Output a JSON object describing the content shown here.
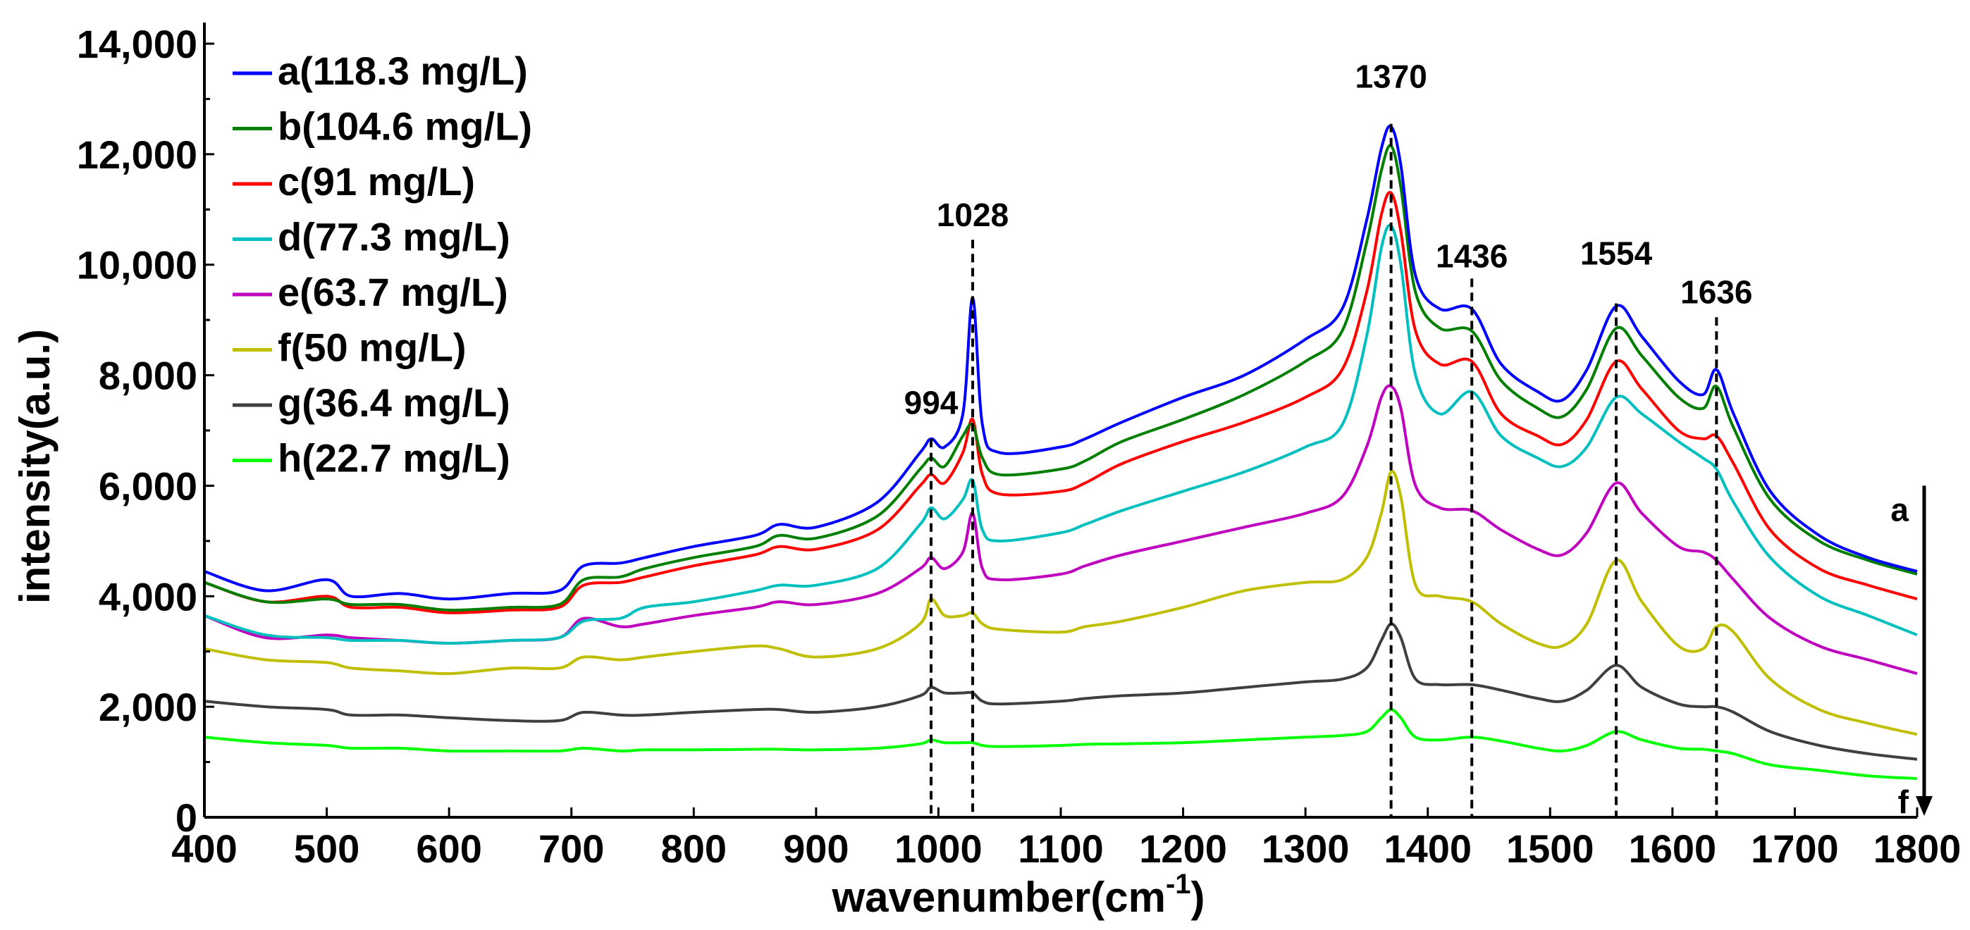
{
  "chart_data": {
    "type": "line",
    "title": "",
    "xlabel": "wavenumber(cm",
    "xlabel_sup": "-1",
    "xlabel_close": ")",
    "ylabel": "intensity(a.u.)",
    "xlim": [
      400,
      1800
    ],
    "ylim": [
      0,
      14000
    ],
    "xticks": [
      400,
      500,
      600,
      700,
      800,
      900,
      1000,
      1100,
      1200,
      1300,
      1400,
      1500,
      1600,
      1700,
      1800
    ],
    "xtick_labels": [
      "400",
      "500",
      "600",
      "700",
      "800",
      "900",
      "1000",
      "1100",
      "1200",
      "1300",
      "1400",
      "1500",
      "1600",
      "1700",
      "1800"
    ],
    "yticks": [
      0,
      2000,
      4000,
      6000,
      8000,
      10000,
      12000,
      14000
    ],
    "ytick_labels": [
      "0",
      "2,000",
      "4,000",
      "6,000",
      "8,000",
      "10,000",
      "12,000",
      "14,000"
    ],
    "grid": false,
    "legend_position": "top-left",
    "series": [
      {
        "name": "a(118.3 mg/L)",
        "color": "#0000ff",
        "x": [
          400,
          450,
          500,
          520,
          560,
          600,
          650,
          690,
          710,
          740,
          760,
          800,
          850,
          870,
          900,
          950,
          985,
          994,
          1005,
          1020,
          1028,
          1036,
          1050,
          1100,
          1120,
          1150,
          1200,
          1250,
          1300,
          1330,
          1350,
          1362,
          1370,
          1378,
          1390,
          1410,
          1436,
          1460,
          1490,
          1510,
          1530,
          1554,
          1575,
          1605,
          1625,
          1636,
          1650,
          1680,
          1720,
          1760,
          1800
        ],
        "y": [
          4450,
          4100,
          4300,
          4000,
          4050,
          3950,
          4050,
          4100,
          4550,
          4600,
          4700,
          4900,
          5100,
          5300,
          5250,
          5700,
          6600,
          6850,
          6700,
          7300,
          9400,
          7100,
          6600,
          6700,
          6850,
          7150,
          7600,
          8000,
          8650,
          9200,
          10800,
          12100,
          12500,
          11800,
          9800,
          9200,
          9200,
          8200,
          7700,
          7550,
          8100,
          9250,
          8700,
          7900,
          7650,
          8100,
          7300,
          5900,
          5100,
          4700,
          4450
        ]
      },
      {
        "name": "b(104.6 mg/L)",
        "color": "#007f00",
        "x": [
          400,
          450,
          500,
          520,
          560,
          600,
          650,
          690,
          710,
          740,
          760,
          800,
          850,
          870,
          900,
          950,
          985,
          994,
          1005,
          1020,
          1028,
          1036,
          1050,
          1100,
          1120,
          1150,
          1200,
          1250,
          1300,
          1330,
          1350,
          1362,
          1370,
          1378,
          1390,
          1410,
          1436,
          1460,
          1490,
          1510,
          1530,
          1554,
          1575,
          1605,
          1625,
          1636,
          1650,
          1680,
          1720,
          1760,
          1800
        ],
        "y": [
          4250,
          3900,
          3950,
          3850,
          3850,
          3750,
          3800,
          3850,
          4300,
          4350,
          4500,
          4700,
          4900,
          5100,
          5050,
          5450,
          6300,
          6500,
          6350,
          6900,
          7100,
          6500,
          6200,
          6300,
          6450,
          6800,
          7200,
          7650,
          8250,
          8800,
          10400,
          11700,
          12150,
          11400,
          9500,
          8850,
          8800,
          7900,
          7400,
          7250,
          7750,
          8850,
          8350,
          7600,
          7400,
          7800,
          7050,
          5750,
          5000,
          4650,
          4400
        ]
      },
      {
        "name": "c(91 mg/L)",
        "color": "#ff0000",
        "x": [
          400,
          450,
          500,
          520,
          560,
          600,
          650,
          690,
          710,
          740,
          760,
          800,
          850,
          870,
          900,
          950,
          985,
          994,
          1005,
          1020,
          1028,
          1036,
          1050,
          1100,
          1120,
          1150,
          1200,
          1250,
          1300,
          1330,
          1350,
          1362,
          1370,
          1378,
          1390,
          1410,
          1436,
          1460,
          1490,
          1510,
          1530,
          1554,
          1575,
          1605,
          1625,
          1636,
          1650,
          1680,
          1720,
          1760,
          1800
        ],
        "y": [
          4250,
          3900,
          4000,
          3800,
          3800,
          3700,
          3750,
          3800,
          4200,
          4250,
          4350,
          4550,
          4750,
          4900,
          4850,
          5200,
          6000,
          6200,
          6050,
          6600,
          7200,
          6200,
          5850,
          5900,
          6050,
          6400,
          6800,
          7150,
          7600,
          8100,
          9500,
          10900,
          11300,
          10600,
          8800,
          8200,
          8250,
          7300,
          6900,
          6750,
          7200,
          8250,
          7750,
          7000,
          6850,
          6900,
          6400,
          5200,
          4500,
          4200,
          3950
        ]
      },
      {
        "name": "d(77.3 mg/L)",
        "color": "#00bfbf",
        "x": [
          400,
          450,
          500,
          520,
          560,
          600,
          650,
          690,
          710,
          740,
          760,
          800,
          850,
          870,
          900,
          950,
          985,
          994,
          1005,
          1020,
          1028,
          1036,
          1050,
          1100,
          1120,
          1150,
          1200,
          1250,
          1300,
          1330,
          1350,
          1362,
          1370,
          1378,
          1390,
          1410,
          1436,
          1460,
          1490,
          1510,
          1530,
          1554,
          1575,
          1605,
          1625,
          1636,
          1650,
          1680,
          1720,
          1760,
          1800
        ],
        "y": [
          3650,
          3300,
          3250,
          3200,
          3200,
          3150,
          3200,
          3250,
          3550,
          3600,
          3800,
          3900,
          4100,
          4200,
          4200,
          4500,
          5300,
          5600,
          5400,
          5750,
          6100,
          5200,
          5000,
          5150,
          5300,
          5550,
          5900,
          6250,
          6700,
          7100,
          8700,
          10300,
          10700,
          10000,
          8000,
          7300,
          7700,
          6900,
          6500,
          6350,
          6700,
          7600,
          7300,
          6800,
          6500,
          6300,
          5700,
          4700,
          4000,
          3650,
          3300
        ]
      },
      {
        "name": "e(63.7 mg/L)",
        "color": "#bf00bf",
        "x": [
          400,
          450,
          500,
          520,
          560,
          600,
          650,
          690,
          710,
          740,
          760,
          800,
          850,
          870,
          900,
          950,
          985,
          994,
          1005,
          1020,
          1028,
          1036,
          1050,
          1100,
          1120,
          1150,
          1200,
          1250,
          1300,
          1330,
          1350,
          1362,
          1370,
          1378,
          1390,
          1410,
          1436,
          1460,
          1490,
          1510,
          1530,
          1554,
          1575,
          1605,
          1625,
          1636,
          1650,
          1680,
          1720,
          1760,
          1800
        ],
        "y": [
          3650,
          3250,
          3300,
          3250,
          3200,
          3150,
          3200,
          3250,
          3600,
          3450,
          3500,
          3650,
          3800,
          3900,
          3850,
          4050,
          4500,
          4700,
          4500,
          4800,
          5500,
          4500,
          4300,
          4400,
          4550,
          4750,
          5000,
          5250,
          5500,
          5800,
          6700,
          7600,
          7800,
          7400,
          6000,
          5600,
          5550,
          5200,
          4850,
          4750,
          5150,
          6050,
          5500,
          4900,
          4800,
          4650,
          4300,
          3600,
          3100,
          2850,
          2600
        ]
      },
      {
        "name": "f(50 mg/L)",
        "color": "#bfbf00",
        "x": [
          400,
          450,
          500,
          520,
          560,
          600,
          650,
          690,
          710,
          740,
          760,
          800,
          850,
          870,
          900,
          950,
          985,
          994,
          1005,
          1020,
          1028,
          1036,
          1050,
          1100,
          1120,
          1150,
          1200,
          1250,
          1300,
          1330,
          1350,
          1362,
          1370,
          1378,
          1390,
          1410,
          1436,
          1460,
          1490,
          1510,
          1530,
          1554,
          1575,
          1605,
          1625,
          1636,
          1650,
          1680,
          1720,
          1760,
          1800
        ],
        "y": [
          3050,
          2850,
          2800,
          2700,
          2650,
          2600,
          2700,
          2700,
          2900,
          2850,
          2900,
          3000,
          3100,
          3050,
          2900,
          3050,
          3500,
          3950,
          3650,
          3650,
          3700,
          3500,
          3400,
          3350,
          3450,
          3550,
          3800,
          4100,
          4250,
          4300,
          4700,
          5500,
          6250,
          5800,
          4200,
          4000,
          3900,
          3500,
          3150,
          3100,
          3500,
          4650,
          3900,
          3100,
          3050,
          3450,
          3350,
          2500,
          1950,
          1700,
          1500
        ]
      },
      {
        "name": "g(36.4 mg/L)",
        "color": "#3f3f3f",
        "x": [
          400,
          450,
          500,
          520,
          560,
          600,
          650,
          690,
          710,
          740,
          760,
          800,
          850,
          870,
          900,
          950,
          985,
          994,
          1005,
          1020,
          1028,
          1036,
          1050,
          1100,
          1120,
          1150,
          1200,
          1250,
          1300,
          1330,
          1350,
          1362,
          1370,
          1378,
          1390,
          1410,
          1436,
          1460,
          1490,
          1510,
          1530,
          1554,
          1575,
          1605,
          1625,
          1636,
          1650,
          1680,
          1720,
          1760,
          1800
        ],
        "y": [
          2100,
          2000,
          1950,
          1850,
          1850,
          1800,
          1750,
          1750,
          1900,
          1850,
          1850,
          1900,
          1950,
          1950,
          1900,
          2000,
          2200,
          2350,
          2250,
          2250,
          2250,
          2100,
          2050,
          2100,
          2150,
          2200,
          2250,
          2350,
          2450,
          2500,
          2700,
          3200,
          3500,
          3250,
          2500,
          2400,
          2400,
          2300,
          2150,
          2100,
          2300,
          2750,
          2350,
          2050,
          2000,
          2000,
          1900,
          1550,
          1300,
          1150,
          1050
        ]
      },
      {
        "name": "h(22.7 mg/L)",
        "color": "#00ff00",
        "x": [
          400,
          450,
          500,
          520,
          560,
          600,
          650,
          690,
          710,
          740,
          760,
          800,
          850,
          870,
          900,
          950,
          985,
          994,
          1005,
          1020,
          1028,
          1036,
          1050,
          1100,
          1120,
          1150,
          1200,
          1250,
          1300,
          1330,
          1350,
          1362,
          1370,
          1378,
          1390,
          1410,
          1436,
          1460,
          1490,
          1510,
          1530,
          1554,
          1575,
          1605,
          1625,
          1636,
          1650,
          1680,
          1720,
          1760,
          1800
        ],
        "y": [
          1450,
          1350,
          1300,
          1250,
          1250,
          1200,
          1200,
          1200,
          1250,
          1200,
          1220,
          1220,
          1230,
          1230,
          1220,
          1250,
          1330,
          1400,
          1350,
          1350,
          1350,
          1300,
          1280,
          1300,
          1320,
          1330,
          1350,
          1400,
          1450,
          1480,
          1550,
          1800,
          1950,
          1800,
          1450,
          1400,
          1450,
          1380,
          1250,
          1200,
          1300,
          1550,
          1400,
          1250,
          1230,
          1200,
          1150,
          950,
          850,
          750,
          700
        ]
      }
    ],
    "annotations": [
      {
        "label": "994",
        "x": 994,
        "line_top_y": 6850,
        "label_y": 7300
      },
      {
        "label": "1028",
        "x": 1028,
        "line_top_y": 10450,
        "label_y": 10700
      },
      {
        "label": "1370",
        "x": 1370,
        "line_top_y": 12550,
        "label_y": 13200
      },
      {
        "label": "1436",
        "x": 1436,
        "line_top_y": 9750,
        "label_y": 9950
      },
      {
        "label": "1554",
        "x": 1554,
        "line_top_y": 9300,
        "label_y": 10000
      },
      {
        "label": "1636",
        "x": 1636,
        "line_top_y": 9050,
        "label_y": 9300
      }
    ],
    "arrow": {
      "x": 1800,
      "y_from": 6000,
      "y_to": 0,
      "top_label": "a",
      "bottom_label": "f"
    }
  }
}
